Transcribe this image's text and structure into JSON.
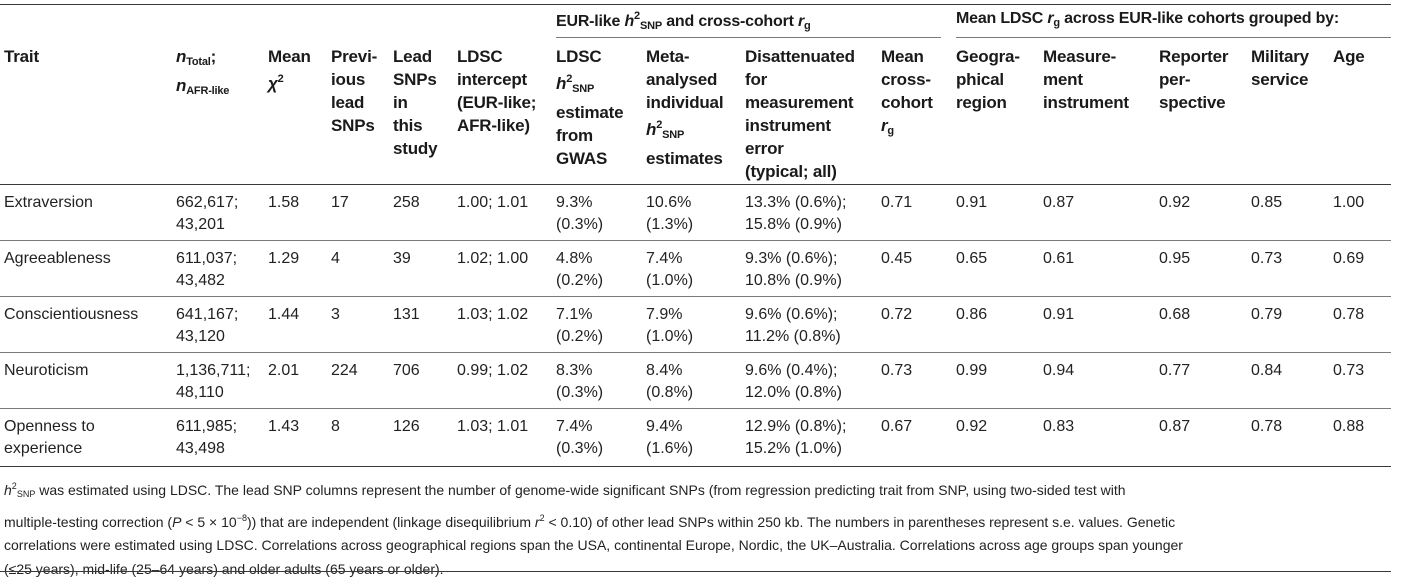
{
  "group_headers": {
    "h2_group_prefix": "EUR-like ",
    "h2_group_h": "h",
    "h2_group_sup": "2",
    "h2_group_sub": "SNP",
    "h2_group_mid": " and cross-cohort ",
    "h2_group_r": "r",
    "h2_group_rsub": "g",
    "rg_group_prefix": "Mean LDSC ",
    "rg_group_r": "r",
    "rg_group_rsub": "g",
    "rg_group_suffix": " across EUR-like cohorts grouped by:"
  },
  "columns": {
    "trait": "Trait",
    "n_total_n": "n",
    "n_total_sub": "Total",
    "n_total_sep": ";",
    "n_afr_n": "n",
    "n_afr_sub": "AFR-like",
    "mean_chi_1": "Mean",
    "mean_chi_2": "χ",
    "mean_chi_sup": "2",
    "prev_1": "Previ-",
    "prev_2": "ious",
    "prev_3": "lead",
    "prev_4": "SNPs",
    "lead_1": "Lead",
    "lead_2": "SNPs",
    "lead_3": "in",
    "lead_4": "this",
    "lead_5": "study",
    "intercept_1": "LDSC",
    "intercept_2": "intercept",
    "intercept_3": "(EUR-like;",
    "intercept_4": "AFR-like)",
    "ldsc_h2_1": "LDSC",
    "ldsc_h2_h": "h",
    "ldsc_h2_sup": "2",
    "ldsc_h2_sub": "SNP",
    "ldsc_h2_3": "estimate",
    "ldsc_h2_4": "from",
    "ldsc_h2_5": "GWAS",
    "meta_1": "Meta-",
    "meta_2": "analysed",
    "meta_3": "individual",
    "meta_h": "h",
    "meta_sup": "2",
    "meta_sub": "SNP",
    "meta_5": "estimates",
    "disatt_1": "Disattenuated",
    "disatt_2": "for",
    "disatt_3": "measurement",
    "disatt_4": "instrument",
    "disatt_5": "error",
    "disatt_6": "(typical; all)",
    "cross_1": "Mean",
    "cross_2": "cross-",
    "cross_3": "cohort",
    "cross_r": "r",
    "cross_rsub": "g",
    "geo_1": "Geogra-",
    "geo_2": "phical",
    "geo_3": "region",
    "meas_1": "Measure-",
    "meas_2": "ment",
    "meas_3": "instrument",
    "rep_1": "Reporter",
    "rep_2": "per-",
    "rep_3": "spective",
    "mil_1": "Military",
    "mil_2": "service",
    "age_1": "Age"
  },
  "rows": [
    {
      "trait": "Extraversion",
      "trait_2": "",
      "n_total": "662,617;",
      "n_afr": "43,201",
      "mean_chi": "1.58",
      "prev_lead": "17",
      "lead": "258",
      "intercept": "1.00; 1.01",
      "ldsc_h2": "9.3%",
      "ldsc_h2_se": "(0.3%)",
      "meta_h2": "10.6%",
      "meta_h2_se": "(1.3%)",
      "disatt_1": "13.3% (0.6%);",
      "disatt_2": "15.8% (0.9%)",
      "cross_rg": "0.71",
      "geo": "0.91",
      "meas": "0.87",
      "rep": "0.92",
      "mil": "0.85",
      "age": "1.00"
    },
    {
      "trait": "Agreeableness",
      "trait_2": "",
      "n_total": "611,037;",
      "n_afr": "43,482",
      "mean_chi": "1.29",
      "prev_lead": "4",
      "lead": "39",
      "intercept": "1.02; 1.00",
      "ldsc_h2": "4.8%",
      "ldsc_h2_se": "(0.2%)",
      "meta_h2": "7.4%",
      "meta_h2_se": "(1.0%)",
      "disatt_1": "9.3% (0.6%);",
      "disatt_2": "10.8% (0.9%)",
      "cross_rg": "0.45",
      "geo": "0.65",
      "meas": "0.61",
      "rep": "0.95",
      "mil": "0.73",
      "age": "0.69"
    },
    {
      "trait": "Conscientiousness",
      "trait_2": "",
      "n_total": "641,167;",
      "n_afr": "43,120",
      "mean_chi": "1.44",
      "prev_lead": "3",
      "lead": "131",
      "intercept": "1.03; 1.02",
      "ldsc_h2": "7.1%",
      "ldsc_h2_se": "(0.2%)",
      "meta_h2": "7.9%",
      "meta_h2_se": "(1.0%)",
      "disatt_1": "9.6% (0.6%);",
      "disatt_2": "11.2% (0.8%)",
      "cross_rg": "0.72",
      "geo": "0.86",
      "meas": "0.91",
      "rep": "0.68",
      "mil": "0.79",
      "age": "0.78"
    },
    {
      "trait": "Neuroticism",
      "trait_2": "",
      "n_total": "1,136,711;",
      "n_afr": "48,110",
      "mean_chi": "2.01",
      "prev_lead": "224",
      "lead": "706",
      "intercept": "0.99; 1.02",
      "ldsc_h2": "8.3%",
      "ldsc_h2_se": "(0.3%)",
      "meta_h2": "8.4%",
      "meta_h2_se": "(0.8%)",
      "disatt_1": "9.6% (0.4%);",
      "disatt_2": "12.0% (0.8%)",
      "cross_rg": "0.73",
      "geo": "0.99",
      "meas": "0.94",
      "rep": "0.77",
      "mil": "0.84",
      "age": "0.73"
    },
    {
      "trait": "Openness to",
      "trait_2": "experience",
      "n_total": "611,985;",
      "n_afr": "43,498",
      "mean_chi": "1.43",
      "prev_lead": "8",
      "lead": "126",
      "intercept": "1.03; 1.01",
      "ldsc_h2": "7.4%",
      "ldsc_h2_se": "(0.3%)",
      "meta_h2": "9.4%",
      "meta_h2_se": "(1.6%)",
      "disatt_1": "12.9% (0.8%);",
      "disatt_2": "15.2% (1.0%)",
      "cross_rg": "0.67",
      "geo": "0.92",
      "meas": "0.83",
      "rep": "0.87",
      "mil": "0.78",
      "age": "0.88"
    }
  ],
  "footnote": {
    "l1_h": "h",
    "l1_sup": "2",
    "l1_sub": "SNP",
    "l1_text": " was estimated using LDSC. The lead SNP columns represent the number of genome-wide significant SNPs (from regression predicting trait from SNP, using two-sided test with",
    "l2_a": "multiple-testing correction (",
    "l2_p": "P",
    "l2_b": " < 5 × 10",
    "l2_exp": "−8",
    "l2_c": ")) that are independent (linkage disequilibrium ",
    "l2_r": "r",
    "l2_rsup": "2",
    "l2_d": " < 0.10) of other lead SNPs within 250 kb. The numbers in parentheses represent s.e. values. Genetic",
    "l3": "correlations were estimated using LDSC. Correlations across geographical regions span the USA, continental Europe, Nordic, the UK–Australia. Correlations across age groups span younger",
    "l4": "(≤25 years), mid-life (25–64 years) and older adults (65 years or older)."
  }
}
